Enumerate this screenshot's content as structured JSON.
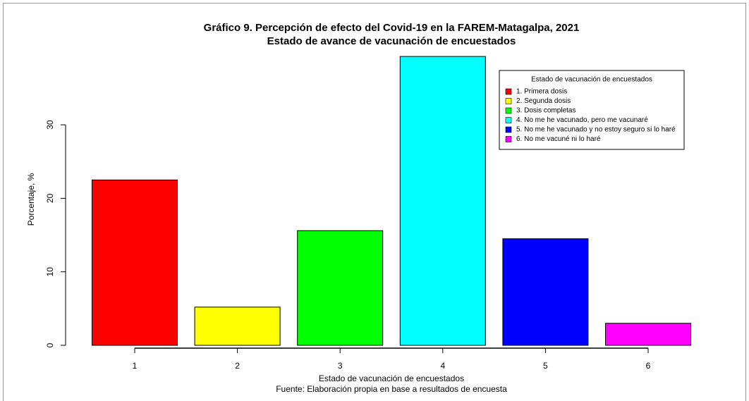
{
  "chart_data": {
    "type": "bar",
    "title": "Gráfico 9. Percepción de efecto del Covid-19 en la FAREM-Matagalpa, 2021",
    "subtitle": "Estado de avance de vacunación de encuestados",
    "xlabel": "Estado de vacunación de encuestados",
    "caption": "Fuente: Elaboración propia en base a resultados de encuesta",
    "ylabel": "Porcentaje, %",
    "categories": [
      "1",
      "2",
      "3",
      "4",
      "5",
      "6"
    ],
    "values": [
      22.5,
      5.2,
      15.6,
      39.3,
      14.5,
      3.0
    ],
    "colors": [
      "#ff0000",
      "#ffff00",
      "#00ff00",
      "#00ffff",
      "#0000ff",
      "#ff00ff"
    ],
    "ylim": [
      0,
      41
    ],
    "yticks": [
      0,
      10,
      20,
      30
    ],
    "legend": {
      "title": "Estado de vacunación de encuestados",
      "position": "top-right",
      "labels": [
        "1. Primera dosis",
        "2. Segunda dosis",
        "3. Dosis completas",
        "4. No me he vacunado, pero me vacunaré",
        "5. No me he vacunado y no estoy seguro si lo haré",
        "6. No me vacuné ni lo haré"
      ]
    }
  }
}
